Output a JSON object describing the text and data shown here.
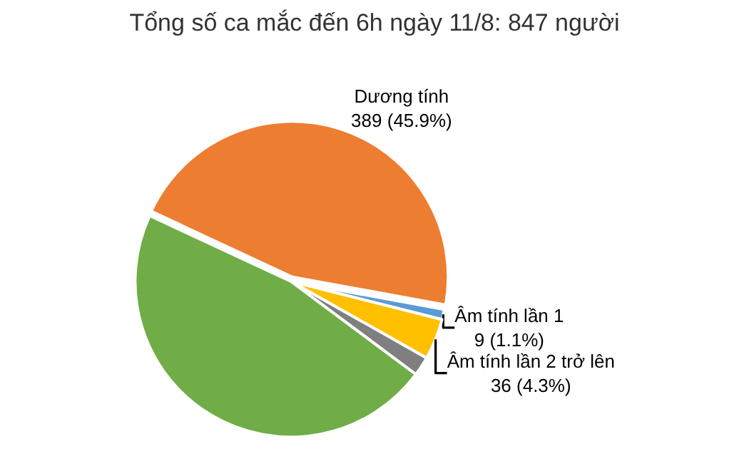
{
  "chart_data": {
    "type": "pie",
    "title": "Tổng số ca mắc đến 6h ngày 11/8: 847 người",
    "categories": [
      "Dương tính",
      "Âm tính lần 1",
      "Âm tính lần 2 trở lên",
      null,
      null
    ],
    "values": [
      389,
      9,
      36,
      17,
      396
    ],
    "colors": [
      "#ed7d31",
      "#5b9bd5",
      "#ffc000",
      "#7f7f7f",
      "#70ad47"
    ],
    "value_labels": [
      "389 (45.9%)",
      "9 (1.1%)",
      "36 (4.3%)",
      null,
      null
    ],
    "legend": false
  }
}
